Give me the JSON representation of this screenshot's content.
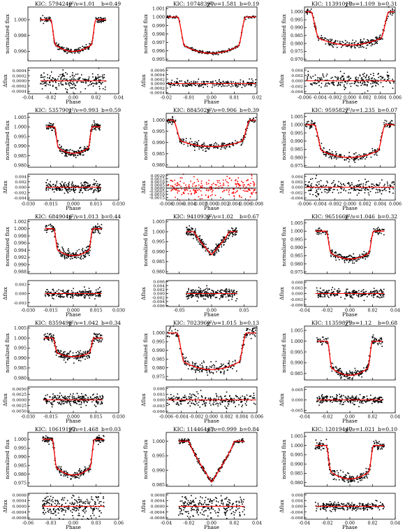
{
  "chart_data": [
    {
      "kic": "5794240",
      "chi2": "1.01",
      "b": "0.49",
      "depth": 0.004,
      "width": 0.02,
      "shape": "u",
      "noise": 0.00018,
      "dots": 220,
      "top_yticks": [
        "1.000",
        "0.998",
        "0.996"
      ],
      "top_ylim": [
        0.9948,
        1.0016
      ],
      "bot_yticks": [
        "0.0004",
        "0.0002",
        "0.0000",
        "-0.0002",
        "-0.0004"
      ],
      "bot_ylim": [
        -0.0005,
        0.0005
      ],
      "xticks": [
        "-0.04",
        "-0.02",
        "0.00",
        "0.02",
        "0.04"
      ],
      "xlim": [
        -0.04,
        0.04
      ]
    },
    {
      "kic": "10748390",
      "chi2": "1.581",
      "b": "0.19",
      "depth": 0.0043,
      "width": 0.015,
      "shape": "u",
      "noise": 8e-05,
      "dots": 220,
      "top_yticks": [
        "1.001",
        "1.000",
        "0.999",
        "0.998",
        "0.997",
        "0.996",
        "0.995"
      ],
      "top_ylim": [
        0.9948,
        1.0012
      ],
      "bot_yticks": [
        "0.0006",
        "0.0004",
        "0.0002",
        "0.0000",
        "-0.0002",
        "-0.0004"
      ],
      "bot_ylim": [
        -0.00045,
        0.0007
      ],
      "xticks": [
        "-0.02",
        "-0.01",
        "0.00",
        "0.01",
        "0.02"
      ],
      "xlim": [
        -0.02,
        0.02
      ]
    },
    {
      "kic": "11391018",
      "chi2": "1.109",
      "b": "0.31",
      "depth": 0.021,
      "width": 0.0052,
      "shape": "u",
      "noise": 0.0012,
      "dots": 240,
      "top_yticks": [
        "1.000",
        "0.995",
        "0.990",
        "0.985",
        "0.980",
        "0.975",
        "0.970"
      ],
      "top_ylim": [
        0.969,
        1.003
      ],
      "bot_yticks": [
        "0.004",
        "0.002",
        "0.000",
        "-0.002",
        "-0.004"
      ],
      "bot_ylim": [
        -0.0048,
        0.0048
      ],
      "xticks": [
        "-0.006",
        "-0.004",
        "-0.002",
        "0.000",
        "0.002",
        "0.004",
        "0.006"
      ],
      "xlim": [
        -0.006,
        0.006
      ]
    },
    {
      "kic": "5357901",
      "chi2": "0.993",
      "b": "0.59",
      "depth": 0.0138,
      "width": 0.0125,
      "shape": "u",
      "noise": 0.001,
      "dots": 240,
      "top_yticks": [
        "1.005",
        "1.000",
        "0.995",
        "0.990",
        "0.985",
        "0.980"
      ],
      "top_ylim": [
        0.979,
        1.007
      ],
      "bot_yticks": [
        "0.004",
        "0.002",
        "0.000",
        "-0.002",
        "-0.004"
      ],
      "bot_ylim": [
        -0.0048,
        0.0048
      ],
      "xticks": [
        "-0.030",
        "-0.015",
        "0.000",
        "0.015",
        "0.030"
      ],
      "xlim": [
        -0.03,
        0.03
      ]
    },
    {
      "kic": "8845026",
      "chi2": "0.906",
      "b": "0.39",
      "depth": 0.0118,
      "width": 0.0068,
      "shape": "u",
      "noise": 0.0008,
      "dots": 240,
      "top_yticks": [
        "1.000",
        "0.995",
        "0.990",
        "0.985",
        "0.980"
      ],
      "top_ylim": [
        0.979,
        1.003
      ],
      "bot_yticks": [
        "0.0020",
        "0.0015",
        "0.0010",
        "0.0005",
        "0.0000",
        "-0.0005",
        "-0.0010",
        "-0.0015"
      ],
      "bot_ylim": [
        -0.0019,
        0.0022
      ],
      "xticks": [
        "-0.008",
        "-0.006",
        "-0.004",
        "-0.002",
        "0.000",
        "0.002",
        "0.004",
        "0.006",
        "0.008"
      ],
      "xlim": [
        -0.008,
        0.008
      ],
      "red_resid": true
    },
    {
      "kic": "9595827",
      "chi2": "1.235",
      "b": "0.07",
      "depth": 0.02,
      "width": 0.0047,
      "shape": "u",
      "noise": 0.0012,
      "dots": 240,
      "top_yticks": [
        "1.005",
        "1.000",
        "0.995",
        "0.990",
        "0.985",
        "0.980",
        "0.975"
      ],
      "top_ylim": [
        0.974,
        1.007
      ],
      "bot_yticks": [
        "0.004",
        "0.002",
        "0.000",
        "-0.002",
        "-0.004"
      ],
      "bot_ylim": [
        -0.0048,
        0.0048
      ],
      "xticks": [
        "-0.006",
        "-0.004",
        "-0.002",
        "0.000",
        "0.002",
        "0.004",
        "0.006"
      ],
      "xlim": [
        -0.006,
        0.006
      ]
    },
    {
      "kic": "6849046",
      "chi2": "1.013",
      "b": "0.44",
      "depth": 0.0075,
      "width": 0.013,
      "shape": "u",
      "noise": 0.0007,
      "dots": 240,
      "top_yticks": [
        "1.002",
        "1.000",
        "0.998",
        "0.996",
        "0.994",
        "0.992",
        "0.990",
        "0.988"
      ],
      "top_ylim": [
        0.9875,
        1.0025
      ],
      "bot_yticks": [
        "0.003",
        "0.000",
        "-0.003"
      ],
      "bot_ylim": [
        -0.0042,
        0.0042
      ],
      "xticks": [
        "-0.030",
        "-0.015",
        "0.000",
        "0.015",
        "0.030"
      ],
      "xlim": [
        -0.03,
        0.03
      ]
    },
    {
      "kic": "9410930",
      "chi2": "1.02",
      "b": "0.67",
      "depth": 0.0115,
      "width": 0.027,
      "shape": "v",
      "noise": 0.0012,
      "dots": 240,
      "top_yticks": [
        "1.005",
        "1.000",
        "0.995",
        "0.990",
        "0.985",
        "0.980"
      ],
      "top_ylim": [
        0.979,
        1.006
      ],
      "bot_yticks": [
        "0.006",
        "0.004",
        "0.002",
        "0.000",
        "-0.002",
        "-0.004",
        "-0.006"
      ],
      "bot_ylim": [
        -0.0065,
        0.0065
      ],
      "xticks": [
        "-0.05",
        "0.00",
        "0.05"
      ],
      "xlim": [
        -0.07,
        0.07
      ]
    },
    {
      "kic": "9651668",
      "chi2": "1.046",
      "b": "0.32",
      "depth": 0.017,
      "width": 0.021,
      "shape": "u",
      "noise": 0.0011,
      "dots": 240,
      "top_yticks": [
        "1.005",
        "1.000",
        "0.995",
        "0.990",
        "0.985",
        "0.980",
        "0.975"
      ],
      "top_ylim": [
        0.974,
        1.007
      ],
      "bot_yticks": [
        "0.006",
        "0.003",
        "0.000",
        "-0.003",
        "-0.006"
      ],
      "bot_ylim": [
        -0.0068,
        0.0068
      ],
      "xticks": [
        "-0.04",
        "-0.02",
        "0.00",
        "0.02",
        "0.04"
      ],
      "xlim": [
        -0.04,
        0.04
      ]
    },
    {
      "kic": "8359498",
      "chi2": "1.042",
      "b": "0.34",
      "depth": 0.0093,
      "width": 0.0135,
      "shape": "u",
      "noise": 0.0012,
      "dots": 240,
      "top_yticks": [
        "1.005",
        "1.000",
        "0.995",
        "0.990",
        "0.985",
        "0.980"
      ],
      "top_ylim": [
        0.979,
        1.006
      ],
      "bot_yticks": [
        "0.0050",
        "0.0025",
        "0.0000",
        "-0.0025",
        "-0.0050"
      ],
      "bot_ylim": [
        -0.0058,
        0.0058
      ],
      "xticks": [
        "-0.030",
        "-0.015",
        "0.000",
        "0.015",
        "0.030"
      ],
      "xlim": [
        -0.03,
        0.03
      ]
    },
    {
      "kic": "7023960",
      "chi2": "1.015",
      "b": "0.13",
      "depth": 0.021,
      "width": 0.0046,
      "shape": "u",
      "noise": 0.0016,
      "dots": 240,
      "top_yticks": [
        "1.000",
        "0.995",
        "0.990",
        "0.985",
        "0.980",
        "0.975"
      ],
      "top_ylim": [
        0.973,
        1.004
      ],
      "bot_yticks": [
        "0.006",
        "0.003",
        "0.000",
        "-0.003",
        "-0.006"
      ],
      "bot_ylim": [
        -0.0068,
        0.0068
      ],
      "xticks": [
        "-0.006",
        "-0.004",
        "-0.002",
        "0.000",
        "0.002",
        "0.004",
        "0.006"
      ],
      "xlim": [
        -0.006,
        0.006
      ]
    },
    {
      "kic": "11359879",
      "chi2": "1.12",
      "b": "0.68",
      "depth": 0.0158,
      "width": 0.02,
      "shape": "u",
      "noise": 0.001,
      "dots": 240,
      "top_yticks": [
        "1.005",
        "1.000",
        "0.995",
        "0.990",
        "0.985"
      ],
      "top_ylim": [
        0.982,
        1.007
      ],
      "bot_yticks": [
        "0.005",
        "0.000",
        "-0.005"
      ],
      "bot_ylim": [
        -0.0062,
        0.0062
      ],
      "xticks": [
        "-0.04",
        "-0.02",
        "0.00",
        "0.02",
        "0.04"
      ],
      "xlim": [
        -0.04,
        0.04
      ]
    },
    {
      "kic": "10619192",
      "chi2": "1.468",
      "b": "0.03",
      "depth": 0.0205,
      "width": 0.028,
      "shape": "u",
      "noise": 0.0012,
      "dots": 240,
      "top_yticks": [
        "1.000",
        "0.995",
        "0.990",
        "0.985",
        "0.980",
        "0.975"
      ],
      "top_ylim": [
        0.973,
        1.004
      ],
      "bot_yticks": [
        "0.0008",
        "0.0004",
        "0.0000",
        "-0.0004",
        "-0.0008"
      ],
      "bot_ylim": [
        -0.0009,
        0.0009
      ],
      "xticks": [
        "-0.06",
        "-0.03",
        "0.00",
        "0.03",
        "0.06"
      ],
      "xlim": [
        -0.06,
        0.06
      ]
    },
    {
      "kic": "11446443",
      "chi2": "0.999",
      "b": "0.84",
      "depth": 0.014,
      "width": 0.02,
      "shape": "v",
      "noise": 0.0004,
      "dots": 240,
      "top_yticks": [
        "1.000",
        "0.995",
        "0.990",
        "0.985"
      ],
      "top_ylim": [
        0.9845,
        1.003
      ],
      "bot_yticks": [
        "0.0008",
        "0.0004",
        "0.0000",
        "-0.0004",
        "-0.0008"
      ],
      "bot_ylim": [
        -0.0009,
        0.0009
      ],
      "xticks": [
        "-0.04",
        "-0.02",
        "0.00",
        "0.02",
        "0.04"
      ],
      "xlim": [
        -0.04,
        0.04
      ]
    },
    {
      "kic": "12019440",
      "chi2": "1.021",
      "b": "0.10",
      "depth": 0.018,
      "width": 0.021,
      "shape": "u",
      "noise": 0.0013,
      "dots": 240,
      "top_yticks": [
        "1.005",
        "1.000",
        "0.995",
        "0.990",
        "0.985",
        "0.980"
      ],
      "top_ylim": [
        0.978,
        1.007
      ],
      "bot_yticks": [
        "0.008",
        "0.004",
        "0.000",
        "-0.004",
        "-0.008"
      ],
      "bot_ylim": [
        -0.009,
        0.009
      ],
      "xticks": [
        "-0.04",
        "-0.02",
        "0.00",
        "0.02",
        "0.04"
      ],
      "xlim": [
        -0.04,
        0.04
      ]
    }
  ],
  "labels": {
    "kic_prefix": "KIC:",
    "chi2_label": "χ²/ν",
    "b_label": "b",
    "top_ylabel": "normalized flux",
    "bot_ylabel": "Δflux",
    "xlabel": "Phase"
  },
  "colors": {
    "data": "#000000",
    "model": "#ff0000",
    "axis": "#000000"
  }
}
